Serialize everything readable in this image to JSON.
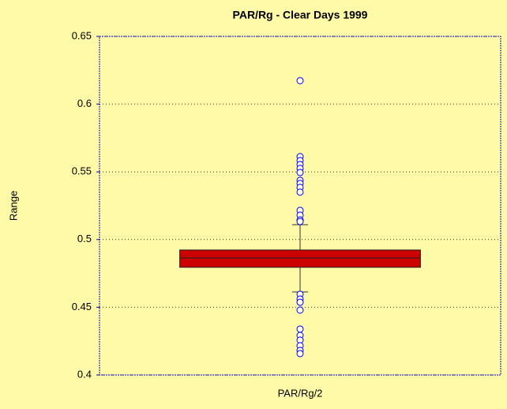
{
  "chart_data": {
    "type": "box",
    "title": "PAR/Rg - Clear Days 1999",
    "y_label": "Range",
    "categories": [
      "PAR/Rg/2"
    ],
    "boxes": [
      {
        "whislo": 0.4613,
        "q1": 0.4795,
        "med": 0.4864,
        "q3": 0.4923,
        "whishi": 0.511,
        "fliers": [
          0.6173,
          0.5612,
          0.5583,
          0.5554,
          0.5525,
          0.5495,
          0.5437,
          0.5414,
          0.5385,
          0.535,
          0.5215,
          0.518,
          0.5145,
          0.5133,
          0.4596,
          0.4561,
          0.4537,
          0.4479,
          0.4339,
          0.4292,
          0.4257,
          0.4216,
          0.4181,
          0.4158
        ]
      }
    ],
    "color": "#cc0000",
    "flier_color": "#0000ff",
    "ylim": [
      0.4,
      0.65
    ],
    "yticks": [
      0.4,
      0.45,
      0.5,
      0.55,
      0.6,
      0.65
    ],
    "grid": true
  }
}
